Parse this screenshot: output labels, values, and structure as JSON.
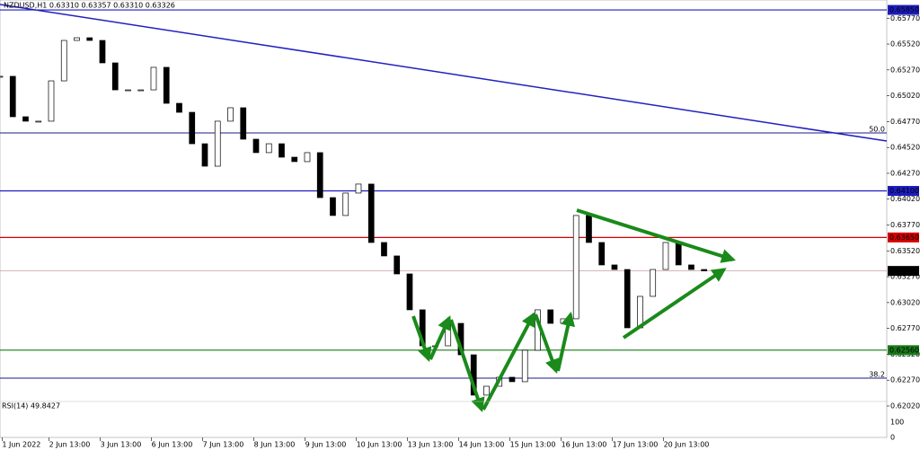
{
  "chart_data": {
    "type": "candles",
    "title": "NZDUSD,H1  0.63310 0.63357 0.63310 0.63326",
    "x": [
      0,
      6,
      12,
      18,
      24,
      30,
      36,
      42,
      48,
      54,
      60,
      66,
      72,
      78,
      84,
      90,
      96,
      102,
      108,
      114,
      120,
      126,
      132,
      138,
      144,
      150,
      156,
      162,
      168,
      174,
      180,
      186,
      192,
      198,
      204,
      210,
      216,
      222,
      228,
      234,
      240,
      246,
      252,
      258,
      264,
      270,
      276,
      282,
      288,
      294,
      300,
      306,
      312,
      318,
      324,
      330
    ],
    "values": [
      0.65208,
      0.64817,
      0.64774,
      0.64774,
      0.65164,
      0.65555,
      0.65581,
      0.65555,
      0.65338,
      0.65077,
      0.65077,
      0.65077,
      0.65295,
      0.64947,
      0.6486,
      0.64556,
      0.64339,
      0.64774,
      0.64904,
      0.646,
      0.6447,
      0.64556,
      0.64426,
      0.64383,
      0.6447,
      0.64035,
      0.63862,
      0.64079,
      0.64166,
      0.63601,
      0.63471,
      0.63297,
      0.6295,
      0.62602,
      0.62602,
      0.62819,
      0.62515,
      0.62125,
      0.62211,
      0.62298,
      0.62255,
      0.62559,
      0.6295,
      0.62819,
      0.62863,
      0.63862,
      0.63601,
      0.63384,
      0.6334,
      0.62776,
      0.6308,
      0.6334,
      0.63601,
      0.63384,
      0.6334,
      0.63326
    ],
    "up_color": "#ffffff",
    "down_color": "#000000",
    "xlim": [
      0,
      415.6
    ],
    "ylim": [
      0.61716,
      0.65946
    ],
    "xticks": [
      {
        "value": 1,
        "label": "1 Jun 2022"
      },
      {
        "value": 23,
        "label": "2 Jun 13:00"
      },
      {
        "value": 47,
        "label": "3 Jun 13:00"
      },
      {
        "value": 71,
        "label": "6 Jun 13:00"
      },
      {
        "value": 95,
        "label": "7 Jun 13:00"
      },
      {
        "value": 119,
        "label": "8 Jun 13:00"
      },
      {
        "value": 143,
        "label": "9 Jun 13:00"
      },
      {
        "value": 167,
        "label": "10 Jun 13:00"
      },
      {
        "value": 191,
        "label": "13 Jun 13:00"
      },
      {
        "value": 215,
        "label": "14 Jun 13:00"
      },
      {
        "value": 239,
        "label": "15 Jun 13:00"
      },
      {
        "value": 263,
        "label": "16 Jun 13:00"
      },
      {
        "value": 287,
        "label": "17 Jun 13:00"
      },
      {
        "value": 311,
        "label": "20 Jun 13:00"
      }
    ],
    "yticks": [
      {
        "value": 0.6577,
        "label": "0.65770"
      },
      {
        "value": 0.6552,
        "label": "0.65520"
      },
      {
        "value": 0.6527,
        "label": "0.65270"
      },
      {
        "value": 0.6502,
        "label": "0.65020"
      },
      {
        "value": 0.6477,
        "label": "0.64770"
      },
      {
        "value": 0.6452,
        "label": "0.64520"
      },
      {
        "value": 0.6427,
        "label": "0.64270"
      },
      {
        "value": 0.6402,
        "label": "0.64020"
      },
      {
        "value": 0.6377,
        "label": "0.63770"
      },
      {
        "value": 0.6352,
        "label": "0.63520"
      },
      {
        "value": 0.6327,
        "label": "0.63270"
      },
      {
        "value": 0.6302,
        "label": "0.63020"
      },
      {
        "value": 0.6277,
        "label": "0.62770"
      },
      {
        "value": 0.6252,
        "label": "0.62520"
      },
      {
        "value": 0.6227,
        "label": "0.62270"
      },
      {
        "value": 0.6202,
        "label": "0.62020"
      }
    ],
    "price_levels": [
      {
        "value": 0.6585,
        "label": "0.65850",
        "color": "#1c1cbf"
      },
      {
        "value": 0.641,
        "label": "0.64100",
        "color": "#1c1cbf"
      },
      {
        "value": 0.6365,
        "label": "0.63650",
        "color": "#d40000"
      },
      {
        "value": 0.63326,
        "label": "0.63326",
        "color": "#000000"
      },
      {
        "value": 0.6256,
        "label": "0.62560",
        "color": "#1a7a1a"
      }
    ],
    "fib_levels": [
      {
        "value": 0.6466,
        "label": "50.0",
        "color": "#1a1a8c"
      },
      {
        "value": 0.62289,
        "label": "38.2",
        "color": "#1a1a8c"
      }
    ],
    "trendline": {
      "x": [
        0,
        415.6
      ],
      "values": [
        0.65903,
        0.64582
      ],
      "color": "#2020c0"
    },
    "rsi": {
      "title": "RSI(14) 49.8427",
      "ylim": [
        0,
        100
      ],
      "yticks": [
        100,
        0
      ]
    }
  }
}
